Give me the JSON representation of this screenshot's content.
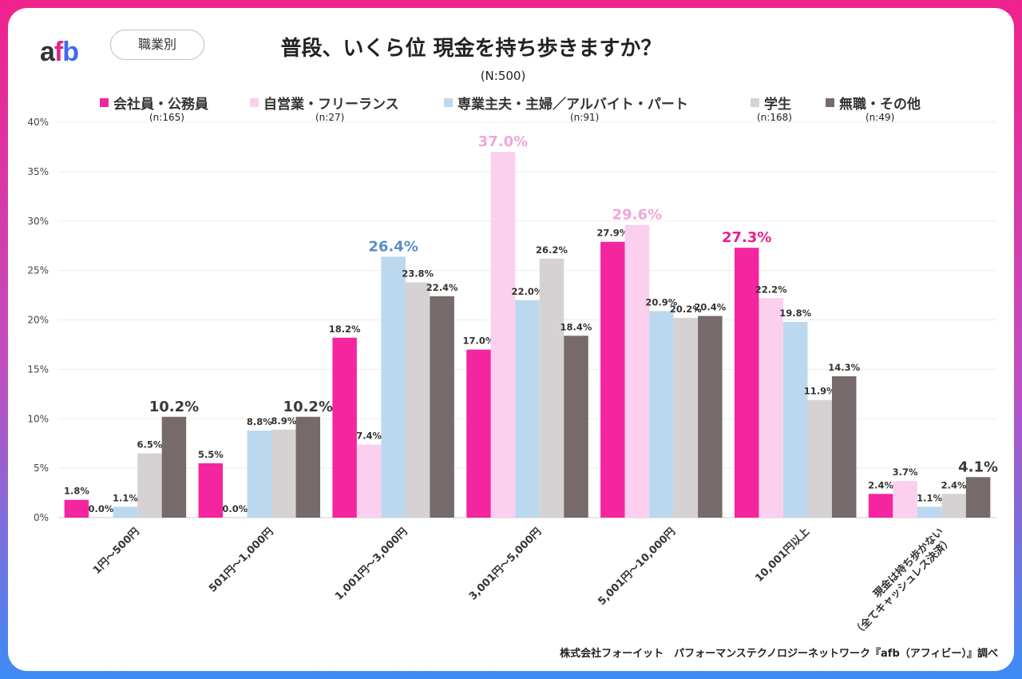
{
  "header": {
    "logo": {
      "a": "a",
      "f": "f",
      "b": "b"
    },
    "badge": "職業別",
    "title": "普段、いくら位 現金を持ち歩きますか？",
    "subtitle": "(N:500)"
  },
  "footer": "株式会社フォーイット　パフォーマンステクノロジーネットワーク『afb（アフィビー）』調べ",
  "chart_data": {
    "type": "bar",
    "title": "普段、いくら位 現金を持ち歩きますか？",
    "ylim": [
      0,
      40
    ],
    "yticks": [
      "0%",
      "5%",
      "10%",
      "15%",
      "20%",
      "25%",
      "30%",
      "35%",
      "40%"
    ],
    "grid": true,
    "legend_placement": "top",
    "categories": [
      "1円～500円",
      "501円～1,000円",
      "1,001円～3,000円",
      "3,001円～5,000円",
      "5,001円～10,000円",
      "10,001円以上",
      "現金は持ち歩かない（全てキャッシュレス決済）"
    ],
    "category_lines": [
      [
        "1円～500円"
      ],
      [
        "501円～1,000円"
      ],
      [
        "1,001円～3,000円"
      ],
      [
        "3,001円～5,000円"
      ],
      [
        "5,001円～10,000円"
      ],
      [
        "10,001円以上"
      ],
      [
        "現金は持ち歩かない",
        "（全てキャッシュレス決済）"
      ]
    ],
    "series": [
      {
        "name": "会社員・公務員",
        "n": "(n:165)",
        "color": "#f4259f",
        "values": [
          1.8,
          5.5,
          18.2,
          17.0,
          27.9,
          27.3,
          2.4
        ],
        "labels": [
          "1.8%",
          "5.5%",
          "18.2%",
          "17.0%",
          "27.9%",
          "27.3%",
          "2.4%"
        ]
      },
      {
        "name": "自営業・フリーランス",
        "n": "(n:27)",
        "color": "#fbcfee",
        "values": [
          0.0,
          0.0,
          7.4,
          37.0,
          29.6,
          22.2,
          3.7
        ],
        "labels": [
          "0.0%",
          "0.0%",
          "7.4%",
          "37.0%",
          "29.6%",
          "22.2%",
          "3.7%"
        ]
      },
      {
        "name": "専業主夫・主婦／アルバイト・パート",
        "n": "(n:91)",
        "color": "#bcd8ef",
        "values": [
          1.1,
          8.8,
          26.4,
          22.0,
          20.9,
          19.8,
          1.1
        ],
        "labels": [
          "1.1%",
          "8.8%",
          "26.4%",
          "22.0%",
          "20.9%",
          "19.8%",
          "1.1%"
        ]
      },
      {
        "name": "学生",
        "n": "(n:168)",
        "color": "#d6d1d2",
        "values": [
          6.5,
          8.9,
          23.8,
          26.2,
          20.2,
          11.9,
          2.4
        ],
        "labels": [
          "6.5%",
          "8.9%",
          "23.8%",
          "26.2%",
          "20.2%",
          "11.9%",
          "2.4%"
        ]
      },
      {
        "name": "無職・その他",
        "n": "(n:49)",
        "color": "#766a6b",
        "values": [
          10.2,
          10.2,
          22.4,
          18.4,
          20.4,
          14.3,
          4.1
        ],
        "labels": [
          "10.2%",
          "10.2%",
          "22.4%",
          "18.4%",
          "20.4%",
          "14.3%",
          "4.1%"
        ]
      }
    ],
    "highlights": [
      {
        "category": 0,
        "series": 4,
        "color": "#3a3a3a"
      },
      {
        "category": 1,
        "series": 4,
        "color": "#3a3a3a"
      },
      {
        "category": 2,
        "series": 2,
        "color": "#5a8ec8"
      },
      {
        "category": 3,
        "series": 1,
        "color": "#f0a6d8"
      },
      {
        "category": 4,
        "series": 1,
        "color": "#f0a6d8"
      },
      {
        "category": 5,
        "series": 0,
        "color": "#e8208c"
      },
      {
        "category": 6,
        "series": 4,
        "color": "#3a3a3a"
      }
    ]
  }
}
